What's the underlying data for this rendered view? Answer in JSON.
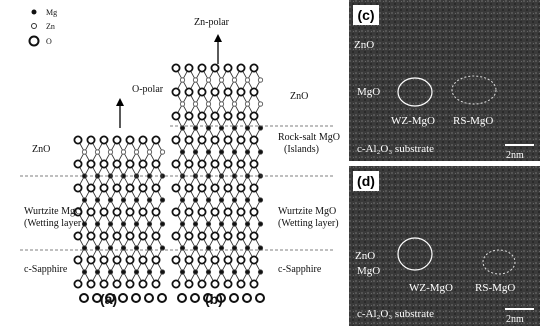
{
  "legend": {
    "mg": "Mg",
    "zn": "Zn",
    "o": "O"
  },
  "panel_a": {
    "label": "(a)",
    "polarity": "O-polar",
    "top_layer": "ZnO",
    "middle_layer": [
      "Wurtzite MgO",
      "(Wetting layer)"
    ],
    "substrate": "c-Sapphire"
  },
  "panel_b": {
    "label": "(b)",
    "polarity": "Zn-polar",
    "top_layer": "ZnO",
    "islands": [
      "Rock-salt MgO",
      "(Islands)"
    ],
    "middle_layer": [
      "Wurtzite MgO",
      "(Wetting layer)"
    ],
    "substrate": "c-Sapphire"
  },
  "panel_c": {
    "label": "(c)",
    "zno": "ZnO",
    "mgo": "MgO",
    "wz": "WZ-MgO",
    "rs": "RS-MgO",
    "substrate": "c-Al₂O₃ substrate",
    "scale": "2nm"
  },
  "panel_d": {
    "label": "(d)",
    "zno": "ZnO",
    "mgo": "MgO",
    "wz": "WZ-MgO",
    "rs": "RS-MgO",
    "substrate": "c-Al₂O₃ substrate",
    "scale": "2nm"
  }
}
